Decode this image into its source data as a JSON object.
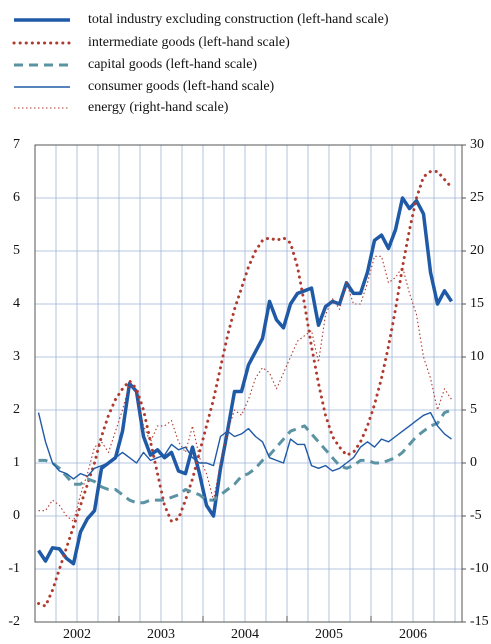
{
  "chart_data": {
    "type": "line",
    "categories": [
      null,
      null,
      null,
      null,
      null,
      null,
      "2002",
      null,
      null,
      null,
      null,
      null,
      null,
      null,
      null,
      null,
      null,
      null,
      "2003",
      null,
      null,
      null,
      null,
      null,
      null,
      null,
      null,
      null,
      null,
      null,
      "2004",
      null,
      null,
      null,
      null,
      null,
      null,
      null,
      null,
      null,
      null,
      null,
      "2005",
      null,
      null,
      null,
      null,
      null,
      null,
      null,
      null,
      null,
      null,
      null,
      "2006",
      null,
      null,
      null,
      null,
      null
    ],
    "ylim": [
      -2,
      7
    ],
    "yticks": [
      -2,
      -1,
      0,
      1,
      2,
      3,
      4,
      5,
      6,
      7
    ],
    "y2lim": [
      -15,
      30
    ],
    "y2ticks": [
      -15,
      -10,
      -5,
      0,
      5,
      10,
      15,
      20,
      25,
      30
    ],
    "grid": true,
    "legend": "top",
    "series": [
      {
        "name": "total industry excluding construction (left-hand scale)",
        "color": "#1f5aa6",
        "style": "solid",
        "values": [
          -0.65,
          -0.85,
          -0.6,
          -0.62,
          -0.8,
          -0.9,
          -0.3,
          -0.05,
          0.1,
          0.9,
          1.0,
          1.1,
          1.6,
          2.5,
          2.35,
          1.5,
          1.15,
          1.25,
          1.1,
          1.2,
          0.85,
          0.8,
          1.3,
          0.8,
          0.2,
          0.0,
          0.9,
          1.6,
          2.35,
          2.35,
          2.85,
          3.1,
          3.35,
          4.05,
          3.7,
          3.55,
          4.0,
          4.2,
          4.25,
          4.3,
          3.6,
          3.95,
          4.05,
          4.0,
          4.4,
          4.2,
          4.2,
          4.6,
          5.2,
          5.3,
          5.05,
          5.4,
          6.0,
          5.8,
          5.95,
          5.7,
          4.6,
          4.0,
          4.25,
          4.05
        ]
      },
      {
        "name": "intermediate goods (left-hand scale)",
        "color": "#b03a2e",
        "style": "dotted",
        "values": [
          -1.65,
          -1.7,
          -1.4,
          -1.0,
          -0.6,
          -0.2,
          0.2,
          0.6,
          1.0,
          1.5,
          1.9,
          2.2,
          2.4,
          2.55,
          2.4,
          2.0,
          1.4,
          0.8,
          0.2,
          -0.1,
          -0.05,
          0.3,
          0.7,
          1.2,
          1.7,
          2.2,
          2.8,
          3.4,
          3.9,
          4.3,
          4.7,
          5.0,
          5.2,
          5.25,
          5.2,
          5.25,
          5.15,
          4.7,
          4.0,
          3.2,
          2.5,
          1.9,
          1.5,
          1.3,
          1.15,
          1.2,
          1.4,
          1.7,
          2.1,
          2.6,
          3.2,
          3.9,
          4.7,
          5.4,
          6.0,
          6.4,
          6.5,
          6.5,
          6.35,
          6.2
        ]
      },
      {
        "name": "capital goods (left-hand scale)",
        "color": "#5b93a3",
        "style": "dashed",
        "values": [
          1.05,
          1.05,
          1.0,
          0.9,
          0.75,
          0.6,
          0.6,
          0.7,
          0.65,
          0.55,
          0.5,
          0.5,
          0.4,
          0.3,
          0.25,
          0.25,
          0.3,
          0.3,
          0.3,
          0.35,
          0.4,
          0.5,
          0.45,
          0.4,
          0.3,
          0.3,
          0.4,
          0.5,
          0.6,
          0.75,
          0.8,
          0.9,
          1.05,
          1.15,
          1.3,
          1.45,
          1.6,
          1.65,
          1.7,
          1.55,
          1.4,
          1.25,
          1.1,
          0.95,
          0.9,
          0.95,
          1.05,
          1.05,
          1.0,
          1.0,
          1.05,
          1.1,
          1.2,
          1.35,
          1.5,
          1.6,
          1.7,
          1.75,
          1.95,
          2.0
        ]
      },
      {
        "name": "consumer goods (left-hand scale)",
        "color": "#1f5aa6",
        "style": "solid",
        "values": [
          1.95,
          1.4,
          1.0,
          0.85,
          0.8,
          0.7,
          0.8,
          0.75,
          0.9,
          0.95,
          1.0,
          1.1,
          1.2,
          1.1,
          1.0,
          1.2,
          1.05,
          1.1,
          1.15,
          1.35,
          1.25,
          1.3,
          1.1,
          1.0,
          1.0,
          0.95,
          1.5,
          1.6,
          1.5,
          1.55,
          1.65,
          1.5,
          1.4,
          1.1,
          1.05,
          1.0,
          1.45,
          1.35,
          1.35,
          0.95,
          0.9,
          0.95,
          0.85,
          0.9,
          1.0,
          1.1,
          1.3,
          1.4,
          1.3,
          1.45,
          1.4,
          1.5,
          1.6,
          1.7,
          1.8,
          1.9,
          1.95,
          1.7,
          1.55,
          1.45
        ]
      },
      {
        "name": "energy (right-hand scale)",
        "color": "#b03a2e",
        "style": "dotted",
        "axis": "y2",
        "values": [
          -4.5,
          -4.5,
          -3.5,
          -4,
          -5,
          -5.5,
          -3,
          -1,
          1.5,
          2,
          1,
          3,
          5,
          7.5,
          6.5,
          3.5,
          2,
          3.5,
          3.5,
          4,
          2,
          1,
          3.5,
          0.5,
          -1,
          -3.5,
          0,
          3,
          5,
          4.5,
          6,
          8,
          9,
          8.5,
          7,
          8.5,
          10,
          11.5,
          12,
          12.5,
          9.5,
          14,
          15.5,
          14.5,
          17,
          15,
          15,
          17,
          19.5,
          19.5,
          17,
          17.5,
          18.5,
          16,
          14,
          10,
          8,
          5,
          7,
          6
        ]
      }
    ]
  }
}
